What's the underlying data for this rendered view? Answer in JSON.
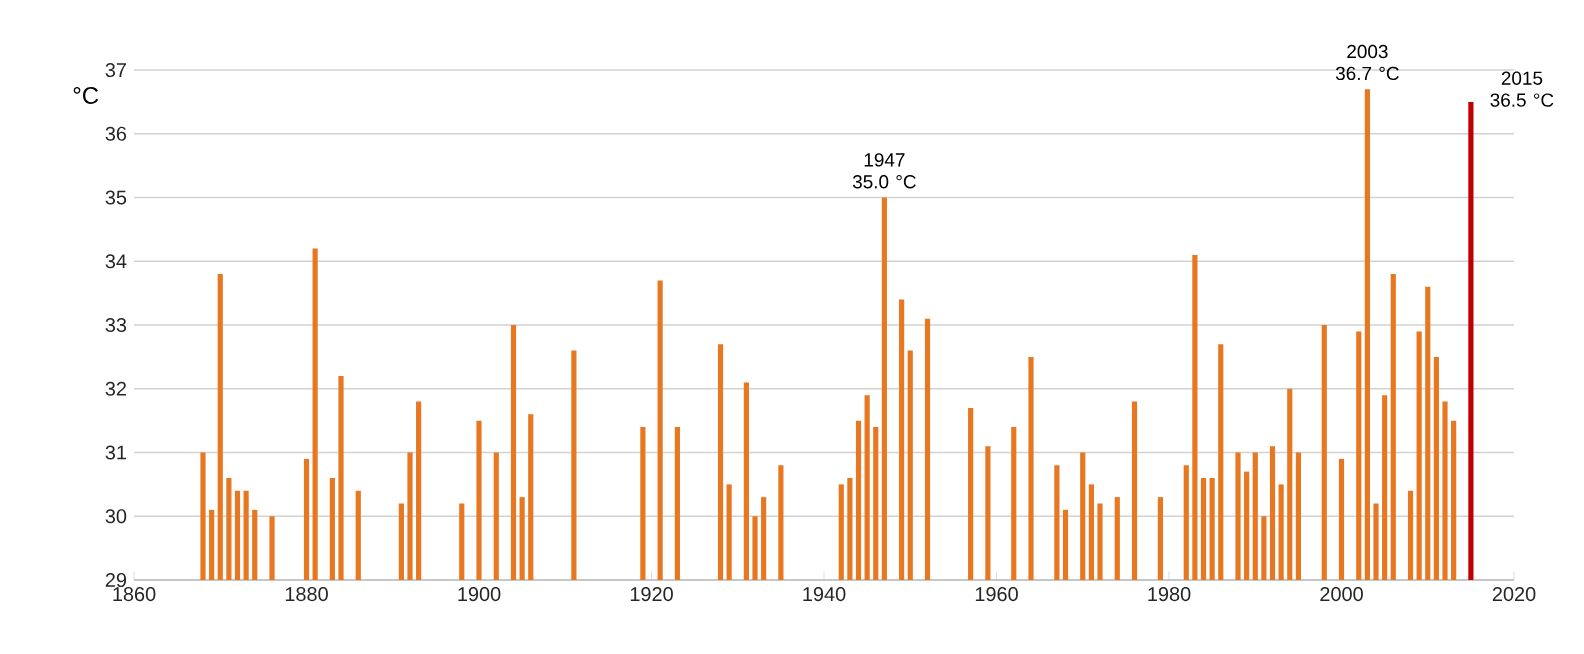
{
  "chart_data": {
    "type": "bar",
    "ylabel": "°C",
    "x": [
      1868,
      1869,
      1870,
      1871,
      1872,
      1873,
      1874,
      1876,
      1880,
      1881,
      1883,
      1884,
      1886,
      1891,
      1892,
      1893,
      1898,
      1900,
      1902,
      1904,
      1905,
      1906,
      1911,
      1919,
      1921,
      1923,
      1928,
      1929,
      1931,
      1932,
      1933,
      1935,
      1942,
      1943,
      1944,
      1945,
      1946,
      1947,
      1949,
      1950,
      1952,
      1957,
      1959,
      1962,
      1964,
      1967,
      1968,
      1970,
      1971,
      1972,
      1974,
      1976,
      1979,
      1982,
      1983,
      1984,
      1985,
      1986,
      1988,
      1989,
      1990,
      1991,
      1992,
      1993,
      1994,
      1995,
      1998,
      2000,
      2002,
      2003,
      2004,
      2005,
      2006,
      2008,
      2009,
      2010,
      2011,
      2012,
      2013,
      2015
    ],
    "values": [
      31.0,
      30.1,
      33.8,
      30.6,
      30.4,
      30.4,
      30.1,
      30.0,
      30.9,
      34.2,
      30.6,
      32.2,
      30.4,
      30.2,
      31.0,
      31.8,
      30.2,
      31.5,
      31.0,
      33.0,
      30.3,
      31.6,
      32.6,
      31.4,
      33.7,
      31.4,
      32.7,
      30.5,
      32.1,
      30.0,
      30.3,
      30.8,
      30.5,
      30.6,
      31.5,
      31.9,
      31.4,
      35.0,
      33.4,
      32.6,
      33.1,
      31.7,
      31.1,
      31.4,
      32.5,
      30.8,
      30.1,
      31.0,
      30.5,
      30.2,
      30.3,
      31.8,
      30.3,
      30.8,
      34.1,
      30.6,
      30.6,
      32.7,
      31.0,
      30.7,
      31.0,
      30.0,
      31.1,
      30.5,
      32.0,
      31.0,
      33.0,
      30.9,
      32.9,
      36.7,
      30.2,
      31.9,
      33.8,
      30.4,
      32.9,
      33.6,
      32.5,
      31.8,
      31.5,
      36.5
    ],
    "colors": [
      "#e87722",
      "#e87722",
      "#e87722",
      "#e87722",
      "#e87722",
      "#e87722",
      "#e87722",
      "#e87722",
      "#e87722",
      "#e87722",
      "#e87722",
      "#e87722",
      "#e87722",
      "#e87722",
      "#e87722",
      "#e87722",
      "#e87722",
      "#e87722",
      "#e87722",
      "#e87722",
      "#e87722",
      "#e87722",
      "#e87722",
      "#e87722",
      "#e87722",
      "#e87722",
      "#e87722",
      "#e87722",
      "#e87722",
      "#e87722",
      "#e87722",
      "#e87722",
      "#e87722",
      "#e87722",
      "#e87722",
      "#e87722",
      "#e87722",
      "#e87722",
      "#e87722",
      "#e87722",
      "#e87722",
      "#e87722",
      "#e87722",
      "#e87722",
      "#e87722",
      "#e87722",
      "#e87722",
      "#e87722",
      "#e87722",
      "#e87722",
      "#e87722",
      "#e87722",
      "#e87722",
      "#e87722",
      "#e87722",
      "#e87722",
      "#e87722",
      "#e87722",
      "#e87722",
      "#e87722",
      "#e87722",
      "#e87722",
      "#e87722",
      "#e87722",
      "#e87722",
      "#e87722",
      "#e87722",
      "#e87722",
      "#e87722",
      "#e87722",
      "#e87722",
      "#e87722",
      "#e87722",
      "#e87722",
      "#e87722",
      "#e87722",
      "#e87722",
      "#e87722",
      "#e87722",
      "#c00000"
    ],
    "xlim": [
      1860,
      2020
    ],
    "xticks": [
      1860,
      1880,
      1900,
      1920,
      1940,
      1960,
      1980,
      2000,
      2020
    ],
    "ylim": [
      29,
      37
    ],
    "yticks": [
      29,
      30,
      31,
      32,
      33,
      34,
      35,
      36,
      37
    ],
    "grid": "y",
    "annotations": [
      {
        "text": "1947 35.0 °C",
        "x": 1947,
        "y": 35.0
      },
      {
        "text": "2003 36.7 °C",
        "x": 2003,
        "y": 36.7
      },
      {
        "text": "2015 36.5 °C",
        "x": 2015,
        "y": 36.5
      }
    ]
  }
}
